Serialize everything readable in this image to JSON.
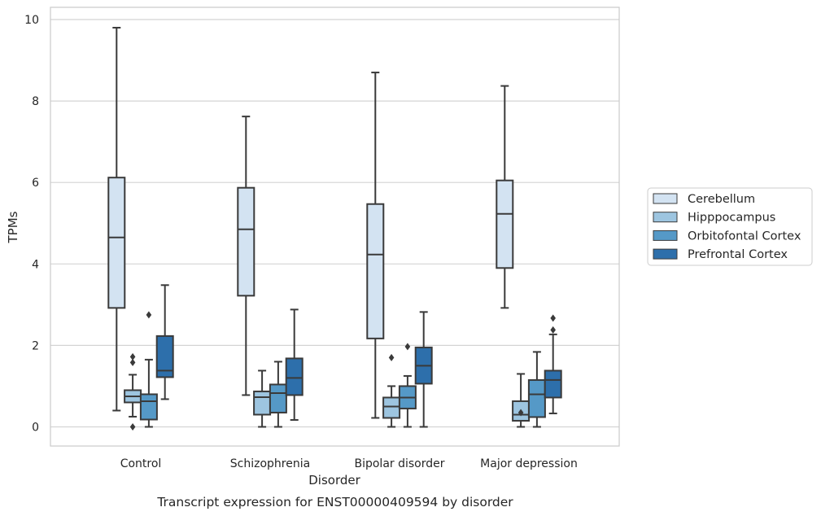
{
  "chart_data": {
    "type": "box",
    "title": "",
    "caption": "Transcript expression for ENST00000409594 by disorder",
    "xlabel": "Disorder",
    "ylabel": "TPMs",
    "ylim": [
      -0.47,
      10.3
    ],
    "yticks": [
      0,
      2,
      4,
      6,
      8,
      10
    ],
    "grid": true,
    "legend_position": "right",
    "categories": [
      "Control",
      "Schizophrenia",
      "Bipolar disorder",
      "Major depression"
    ],
    "series": [
      {
        "name": "Cerebellum",
        "color": "#d3e3f2",
        "boxes": [
          {
            "whislo": 0.4,
            "q1": 2.92,
            "med": 4.65,
            "q3": 6.12,
            "whishi": 9.8,
            "fliers": []
          },
          {
            "whislo": 0.78,
            "q1": 3.22,
            "med": 4.85,
            "q3": 5.87,
            "whishi": 7.62,
            "fliers": []
          },
          {
            "whislo": 0.22,
            "q1": 2.17,
            "med": 4.23,
            "q3": 5.47,
            "whishi": 8.7,
            "fliers": []
          },
          {
            "whislo": 2.92,
            "q1": 3.9,
            "med": 5.23,
            "q3": 6.05,
            "whishi": 8.37,
            "fliers": []
          }
        ]
      },
      {
        "name": "Hipppocampus",
        "color": "#9dc5e0",
        "boxes": [
          {
            "whislo": 0.25,
            "q1": 0.6,
            "med": 0.75,
            "q3": 0.9,
            "whishi": 1.28,
            "fliers": [
              0.0,
              1.58,
              1.72
            ]
          },
          {
            "whislo": 0.0,
            "q1": 0.3,
            "med": 0.73,
            "q3": 0.87,
            "whishi": 1.38,
            "fliers": []
          },
          {
            "whislo": 0.0,
            "q1": 0.22,
            "med": 0.5,
            "q3": 0.72,
            "whishi": 1.0,
            "fliers": [
              1.7
            ]
          },
          {
            "whislo": 0.0,
            "q1": 0.15,
            "med": 0.3,
            "q3": 0.63,
            "whishi": 1.3,
            "fliers": [
              0.35
            ]
          }
        ]
      },
      {
        "name": "Orbitofontal Cortex",
        "color": "#5599c7",
        "boxes": [
          {
            "whislo": 0.0,
            "q1": 0.18,
            "med": 0.63,
            "q3": 0.8,
            "whishi": 1.65,
            "fliers": [
              2.75
            ]
          },
          {
            "whislo": 0.0,
            "q1": 0.35,
            "med": 0.83,
            "q3": 1.04,
            "whishi": 1.6,
            "fliers": []
          },
          {
            "whislo": 0.0,
            "q1": 0.45,
            "med": 0.72,
            "q3": 1.0,
            "whishi": 1.25,
            "fliers": [
              1.97
            ]
          },
          {
            "whislo": 0.0,
            "q1": 0.24,
            "med": 0.8,
            "q3": 1.15,
            "whishi": 1.84,
            "fliers": []
          }
        ]
      },
      {
        "name": "Prefrontal Cortex",
        "color": "#2d6fab",
        "boxes": [
          {
            "whislo": 0.68,
            "q1": 1.22,
            "med": 1.38,
            "q3": 2.23,
            "whishi": 3.48,
            "fliers": []
          },
          {
            "whislo": 0.17,
            "q1": 0.78,
            "med": 1.2,
            "q3": 1.68,
            "whishi": 2.88,
            "fliers": []
          },
          {
            "whislo": 0.0,
            "q1": 1.06,
            "med": 1.5,
            "q3": 1.95,
            "whishi": 2.82,
            "fliers": []
          },
          {
            "whislo": 0.33,
            "q1": 0.72,
            "med": 1.15,
            "q3": 1.38,
            "whishi": 2.27,
            "fliers": [
              2.38,
              2.67
            ]
          }
        ]
      }
    ]
  }
}
